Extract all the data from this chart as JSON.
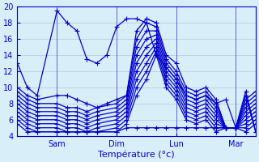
{
  "xlabel": "Température (°c)",
  "xlim": [
    0,
    96
  ],
  "ylim": [
    4,
    20
  ],
  "yticks": [
    4,
    6,
    8,
    10,
    12,
    14,
    16,
    18,
    20
  ],
  "xtick_positions": [
    16,
    40,
    64,
    88
  ],
  "xtick_labels": [
    "Sam",
    "Dim",
    "Lun",
    "Mar"
  ],
  "bg_color": "#d8eef8",
  "grid_color": "#b0c8dc",
  "line_color": "#0000cc",
  "marker": "+",
  "markersize": 4,
  "linewidth": 0.9,
  "series": [
    {
      "x": [
        0,
        4,
        8,
        16,
        20,
        24,
        28,
        32,
        36,
        40,
        44,
        48,
        52,
        56,
        60,
        64,
        68,
        72,
        76,
        80,
        84,
        88,
        92,
        96
      ],
      "y": [
        13,
        10,
        9,
        19.5,
        18,
        17,
        13.5,
        13,
        14,
        17.5,
        18.5,
        18.5,
        18,
        14,
        12.5,
        11,
        9,
        8.5,
        9,
        8,
        8.5,
        5,
        9,
        4.5
      ]
    },
    {
      "x": [
        0,
        4,
        8,
        16,
        20,
        24,
        28,
        32,
        36,
        40,
        44,
        48,
        52,
        56,
        60,
        64,
        68,
        72,
        76,
        80,
        84,
        88,
        92,
        96
      ],
      "y": [
        10,
        9,
        8.5,
        9,
        9,
        8.5,
        8,
        7.5,
        8,
        8.5,
        9,
        17,
        18.5,
        18,
        14,
        13,
        10,
        9.5,
        10,
        8.5,
        5,
        5,
        8.5,
        9.5
      ]
    },
    {
      "x": [
        0,
        4,
        8,
        16,
        20,
        24,
        28,
        32,
        40,
        44,
        48,
        52,
        56,
        60,
        64,
        68,
        72,
        76,
        80,
        84,
        88,
        92,
        96
      ],
      "y": [
        9.5,
        8.5,
        8,
        8,
        7.5,
        7.5,
        7,
        7.5,
        8,
        9,
        16,
        18,
        17.5,
        13.5,
        12,
        9.5,
        9,
        9.5,
        8,
        5,
        5,
        8,
        9
      ]
    },
    {
      "x": [
        0,
        4,
        8,
        16,
        20,
        24,
        28,
        32,
        40,
        44,
        48,
        52,
        56,
        60,
        64,
        68,
        72,
        76,
        80,
        84,
        88,
        92,
        96
      ],
      "y": [
        9,
        8,
        7.5,
        7.5,
        7,
        7,
        6.5,
        7,
        7.5,
        8.5,
        15,
        17,
        17,
        13,
        11.5,
        9,
        8.5,
        9,
        7.5,
        5,
        5,
        7.5,
        8.5
      ]
    },
    {
      "x": [
        0,
        4,
        8,
        16,
        20,
        24,
        28,
        32,
        40,
        44,
        48,
        52,
        56,
        60,
        64,
        68,
        72,
        76,
        80,
        84,
        88,
        92,
        96
      ],
      "y": [
        8.5,
        7.5,
        7,
        7,
        6.5,
        6.5,
        6,
        6.5,
        7,
        8,
        14,
        16,
        16.5,
        12.5,
        11,
        8.5,
        8,
        8.5,
        7,
        5,
        5,
        7,
        8
      ]
    },
    {
      "x": [
        0,
        4,
        8,
        16,
        20,
        24,
        28,
        32,
        40,
        44,
        48,
        52,
        56,
        60,
        64,
        68,
        72,
        76,
        80,
        84,
        88,
        92,
        96
      ],
      "y": [
        8,
        7,
        6.5,
        6.5,
        6,
        6,
        5.5,
        6,
        6.5,
        7.5,
        13,
        15,
        16,
        12,
        10.5,
        8,
        7.5,
        8,
        6.5,
        5,
        5,
        6.5,
        7.5
      ]
    },
    {
      "x": [
        0,
        4,
        8,
        16,
        20,
        24,
        28,
        32,
        40,
        44,
        48,
        52,
        56,
        60,
        64,
        68,
        72,
        76,
        80,
        84,
        88,
        92,
        96
      ],
      "y": [
        7.5,
        6.5,
        6,
        6,
        5.5,
        5.5,
        5,
        5.5,
        6,
        7,
        12,
        14,
        15.5,
        11.5,
        10,
        7.5,
        7,
        7.5,
        6,
        5,
        5,
        6,
        7
      ]
    },
    {
      "x": [
        0,
        4,
        8,
        16,
        20,
        24,
        28,
        32,
        40,
        44,
        48,
        52,
        56,
        60,
        64,
        68,
        72,
        76,
        80,
        84,
        88,
        92,
        96
      ],
      "y": [
        7,
        6,
        5.5,
        5.5,
        5,
        5,
        4.5,
        5,
        5.5,
        6.5,
        11,
        13,
        15,
        11,
        9.5,
        7,
        6.5,
        7,
        5.5,
        5,
        5,
        5.5,
        6.5
      ]
    },
    {
      "x": [
        0,
        4,
        8,
        16,
        20,
        24,
        28,
        32,
        40,
        44,
        48,
        52,
        56,
        60,
        64,
        68,
        72,
        76,
        80,
        84,
        88,
        92,
        96
      ],
      "y": [
        6.5,
        5.5,
        5,
        5,
        4.5,
        4.5,
        4.5,
        4.5,
        5,
        6,
        10,
        12,
        14.5,
        10.5,
        9,
        6.5,
        6,
        6.5,
        5,
        5,
        5,
        5,
        6
      ]
    },
    {
      "x": [
        0,
        4,
        8,
        16,
        20,
        24,
        28,
        32,
        40,
        44,
        48,
        52,
        56,
        60,
        64,
        68,
        72,
        76,
        80,
        84,
        88,
        92,
        96
      ],
      "y": [
        6,
        5,
        4.5,
        4.5,
        4.5,
        4.5,
        4.5,
        4.5,
        4.5,
        5.5,
        9,
        11,
        14,
        10,
        8.5,
        6,
        5.5,
        6,
        4.5,
        5,
        5,
        4.5,
        5.5
      ]
    },
    {
      "x": [
        0,
        4,
        8,
        16,
        20,
        24,
        28,
        32,
        40,
        44,
        48,
        52,
        56,
        60,
        64,
        68,
        72,
        76,
        80,
        84,
        88,
        92,
        96
      ],
      "y": [
        5.5,
        4.5,
        4.5,
        4.5,
        4.5,
        4.5,
        4.5,
        4.5,
        4.5,
        5,
        5,
        5,
        5,
        5,
        5,
        5,
        5,
        5,
        5,
        5,
        5,
        9.5,
        4.5
      ]
    }
  ]
}
